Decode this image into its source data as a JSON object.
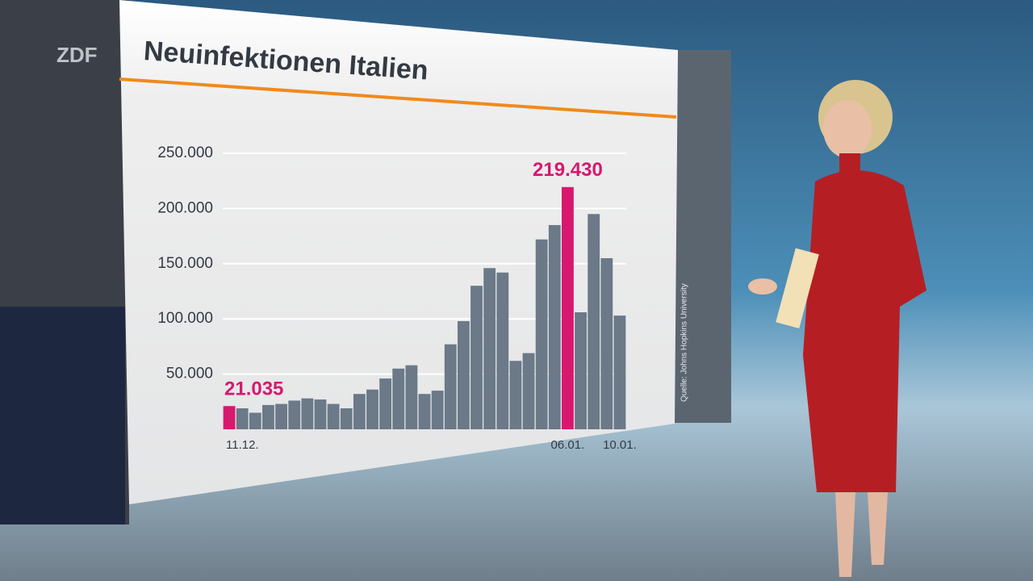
{
  "logo": "ZDF",
  "chart_data": {
    "type": "bar",
    "title": "Neuinfektionen Italien",
    "source": "Quelle: Johns Hopkins University",
    "categories": [
      "11.12.",
      null,
      null,
      null,
      null,
      null,
      null,
      null,
      null,
      null,
      null,
      null,
      null,
      null,
      null,
      null,
      null,
      null,
      null,
      null,
      null,
      null,
      null,
      null,
      null,
      null,
      "06.01.",
      null,
      null,
      null,
      "10.01."
    ],
    "values": [
      21035,
      19000,
      15000,
      22000,
      23000,
      26000,
      28000,
      27000,
      23000,
      19000,
      32000,
      36000,
      46000,
      55000,
      58000,
      32000,
      35000,
      77000,
      98000,
      130000,
      146000,
      142000,
      62000,
      69000,
      172000,
      185000,
      219430,
      106000,
      195000,
      155000,
      103000
    ],
    "value_labels": [
      "21.035",
      null,
      null,
      null,
      null,
      null,
      null,
      null,
      null,
      null,
      null,
      null,
      null,
      null,
      null,
      null,
      null,
      null,
      null,
      null,
      null,
      null,
      null,
      null,
      null,
      null,
      "219.430",
      null,
      null,
      null,
      null
    ],
    "colors": [
      "#d6196f",
      "#6b7988",
      "#6b7988",
      "#6b7988",
      "#6b7988",
      "#6b7988",
      "#6b7988",
      "#6b7988",
      "#6b7988",
      "#6b7988",
      "#6b7988",
      "#6b7988",
      "#6b7988",
      "#6b7988",
      "#6b7988",
      "#6b7988",
      "#6b7988",
      "#6b7988",
      "#6b7988",
      "#6b7988",
      "#6b7988",
      "#6b7988",
      "#6b7988",
      "#6b7988",
      "#6b7988",
      "#6b7988",
      "#d6196f",
      "#6b7988",
      "#6b7988",
      "#6b7988",
      "#6b7988"
    ],
    "label_color": "#d6196f",
    "ylim": [
      0,
      250000
    ],
    "yticks": [
      {
        "value": 50000,
        "label": "50.000"
      },
      {
        "value": 100000,
        "label": "100.000"
      },
      {
        "value": 150000,
        "label": "150.000"
      },
      {
        "value": 200000,
        "label": "200.000"
      },
      {
        "value": 250000,
        "label": "250.000"
      }
    ],
    "grid": true
  }
}
